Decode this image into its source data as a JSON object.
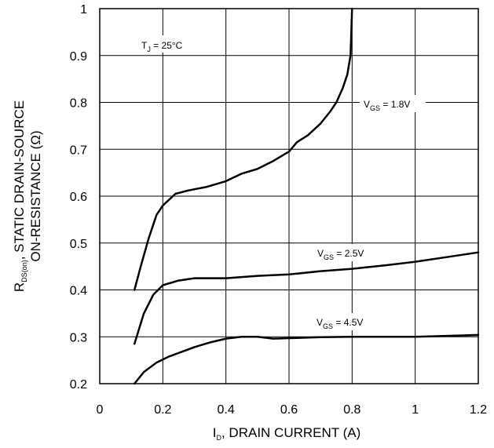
{
  "chart_data": {
    "type": "line",
    "xlabel": {
      "main": "I",
      "sub": "D",
      "rest": ", DRAIN CURRENT (A)"
    },
    "ylabel": {
      "main": "R",
      "sub": "DS(on)",
      "rest": ", STATIC DRAIN-SOURCE",
      "line2": "ON-RESISTANCE (Ω)"
    },
    "xlim": [
      0,
      1.2
    ],
    "ylim": [
      0.2,
      1.0
    ],
    "x_ticks": [
      "0",
      "0.2",
      "0.4",
      "0.6",
      "0.8",
      "1",
      "1.2"
    ],
    "y_ticks": [
      "0.2",
      "0.3",
      "0.4",
      "0.5",
      "0.6",
      "0.7",
      "0.8",
      "0.9",
      "1"
    ],
    "grid": true,
    "annotation": {
      "main": "T",
      "sub": "J",
      "rest": " = 25°C"
    },
    "series": [
      {
        "label_main": "V",
        "label_sub": "GS",
        "label_rest": " = 1.8V",
        "x": [
          0.11,
          0.13,
          0.155,
          0.18,
          0.2,
          0.24,
          0.28,
          0.34,
          0.4,
          0.45,
          0.5,
          0.55,
          0.6,
          0.625,
          0.66,
          0.7,
          0.73,
          0.75,
          0.77,
          0.785,
          0.795,
          0.8
        ],
        "y": [
          0.4,
          0.45,
          0.51,
          0.56,
          0.58,
          0.605,
          0.612,
          0.62,
          0.632,
          0.648,
          0.658,
          0.675,
          0.695,
          0.715,
          0.73,
          0.755,
          0.78,
          0.8,
          0.83,
          0.86,
          0.9,
          1.0
        ]
      },
      {
        "label_main": "V",
        "label_sub": "GS",
        "label_rest": " = 2.5V",
        "x": [
          0.11,
          0.14,
          0.17,
          0.2,
          0.25,
          0.3,
          0.4,
          0.5,
          0.6,
          0.7,
          0.8,
          0.9,
          1.0,
          1.1,
          1.2
        ],
        "y": [
          0.285,
          0.35,
          0.39,
          0.41,
          0.42,
          0.425,
          0.425,
          0.43,
          0.433,
          0.44,
          0.445,
          0.452,
          0.46,
          0.47,
          0.48
        ]
      },
      {
        "label_main": "V",
        "label_sub": "GS",
        "label_rest": " = 4.5V",
        "x": [
          0.11,
          0.14,
          0.18,
          0.22,
          0.26,
          0.3,
          0.35,
          0.4,
          0.45,
          0.5,
          0.55,
          0.6,
          0.7,
          0.8,
          0.9,
          1.0,
          1.1,
          1.2
        ],
        "y": [
          0.2,
          0.225,
          0.245,
          0.258,
          0.268,
          0.278,
          0.288,
          0.296,
          0.3,
          0.3,
          0.296,
          0.297,
          0.299,
          0.3,
          0.3,
          0.3,
          0.302,
          0.304
        ]
      }
    ]
  }
}
